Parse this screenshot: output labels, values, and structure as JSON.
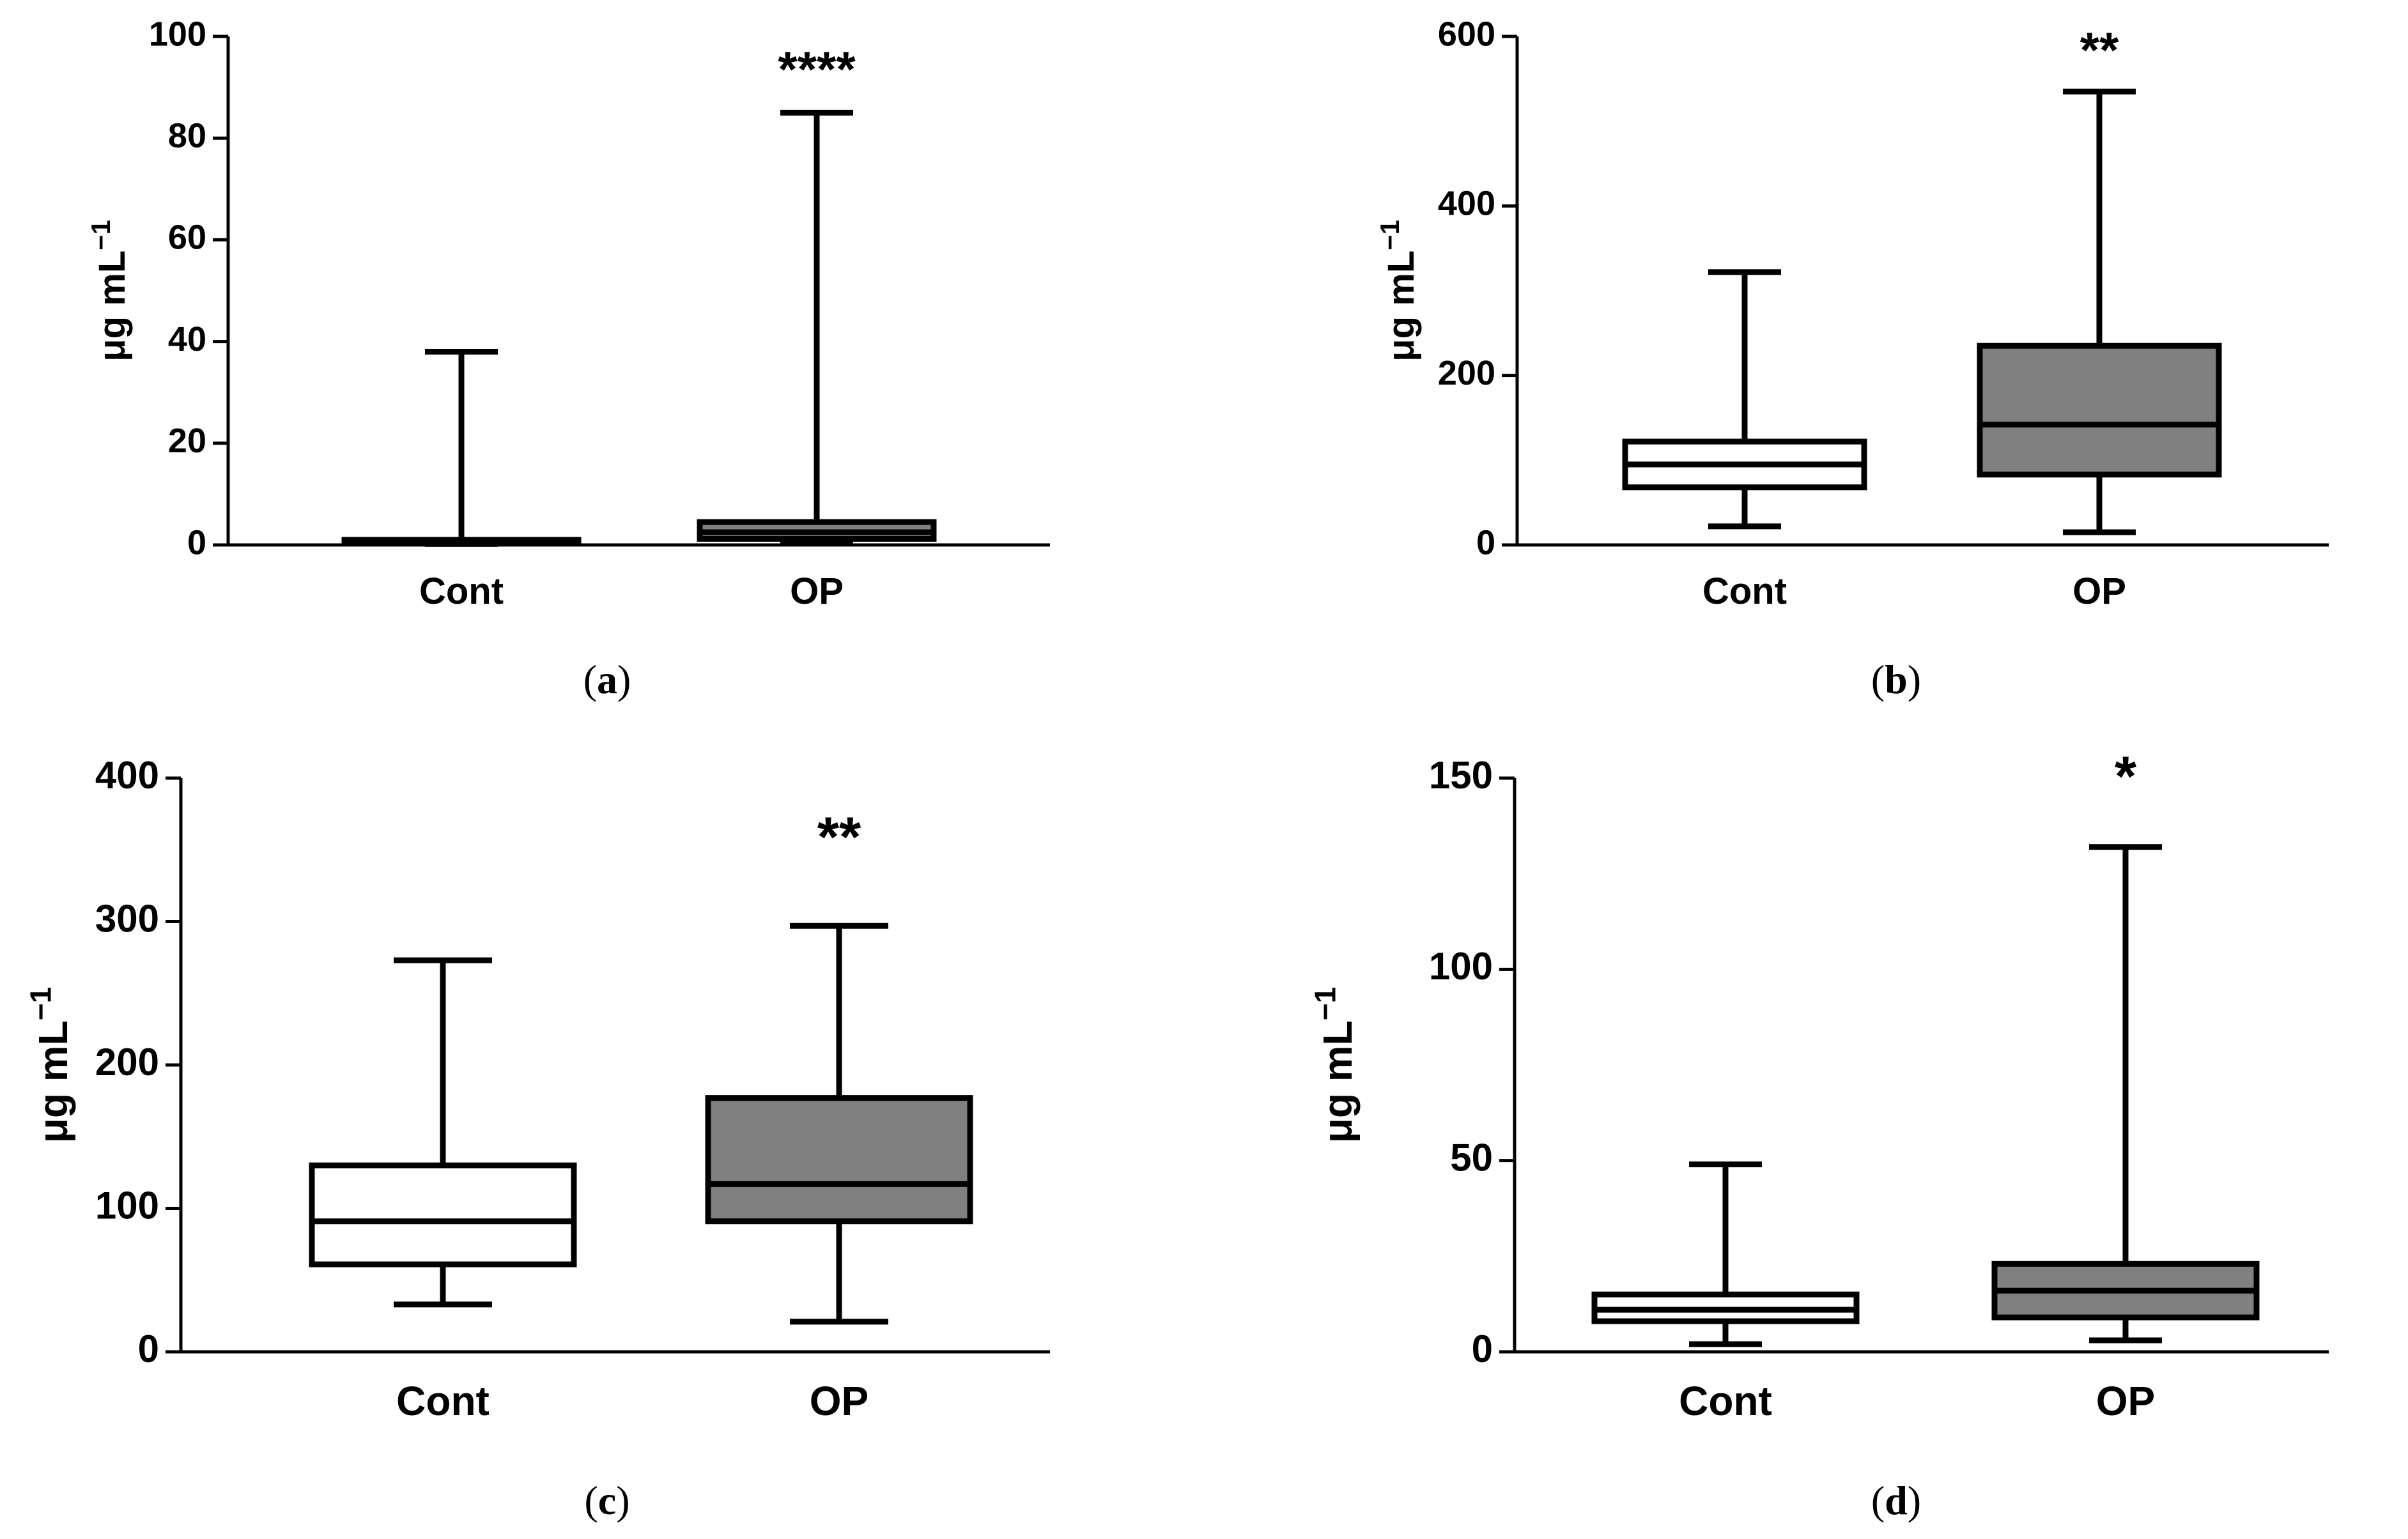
{
  "colors": {
    "stroke": "#000000",
    "cont_fill": "#ffffff",
    "op_fill": "#808080"
  },
  "chart_data": [
    {
      "type": "box",
      "panel": "a",
      "caption_open": "(",
      "caption_letter": "a",
      "caption_close": ")",
      "ylabel": "μg mL",
      "ylabel_sup": "−1",
      "categories": [
        "Cont",
        "OP"
      ],
      "ylim": [
        0,
        100
      ],
      "yticks": [
        0,
        20,
        40,
        60,
        80,
        100
      ],
      "boxes": [
        {
          "name": "Cont",
          "min": 0.2,
          "q1": 0.3,
          "median": 0.6,
          "q3": 1.0,
          "max": 38
        },
        {
          "name": "OP",
          "min": 0.3,
          "q1": 1.2,
          "median": 2.5,
          "q3": 4.5,
          "max": 85
        }
      ],
      "significance": "****"
    },
    {
      "type": "box",
      "panel": "b",
      "caption_open": "(",
      "caption_letter": "b",
      "caption_close": ")",
      "ylabel": "μg mL",
      "ylabel_sup": "−1",
      "categories": [
        "Cont",
        "OP"
      ],
      "ylim": [
        0,
        600
      ],
      "yticks": [
        0,
        200,
        400,
        600
      ],
      "boxes": [
        {
          "name": "Cont",
          "min": 22,
          "q1": 68,
          "median": 95,
          "q3": 122,
          "max": 322
        },
        {
          "name": "OP",
          "min": 15,
          "q1": 83,
          "median": 142,
          "q3": 235,
          "max": 535
        }
      ],
      "significance": "**"
    },
    {
      "type": "box",
      "panel": "c",
      "caption_open": "(",
      "caption_letter": "c",
      "caption_close": ")",
      "ylabel": "μg mL",
      "ylabel_sup": "−1",
      "categories": [
        "Cont",
        "OP"
      ],
      "ylim": [
        0,
        400
      ],
      "yticks": [
        0,
        100,
        200,
        300,
        400
      ],
      "boxes": [
        {
          "name": "Cont",
          "min": 33,
          "q1": 61,
          "median": 91,
          "q3": 130,
          "max": 273
        },
        {
          "name": "OP",
          "min": 21,
          "q1": 91,
          "median": 117,
          "q3": 177,
          "max": 297
        }
      ],
      "significance": "**"
    },
    {
      "type": "box",
      "panel": "d",
      "caption_open": "(",
      "caption_letter": "d",
      "caption_close": ")",
      "ylabel": "μg mL",
      "ylabel_sup": "−1",
      "categories": [
        "Cont",
        "OP"
      ],
      "ylim": [
        0,
        150
      ],
      "yticks": [
        0,
        50,
        100,
        150
      ],
      "boxes": [
        {
          "name": "Cont",
          "min": 2,
          "q1": 8,
          "median": 11,
          "q3": 15,
          "max": 49
        },
        {
          "name": "OP",
          "min": 3,
          "q1": 9,
          "median": 16,
          "q3": 23,
          "max": 132
        }
      ],
      "significance": "*"
    }
  ]
}
